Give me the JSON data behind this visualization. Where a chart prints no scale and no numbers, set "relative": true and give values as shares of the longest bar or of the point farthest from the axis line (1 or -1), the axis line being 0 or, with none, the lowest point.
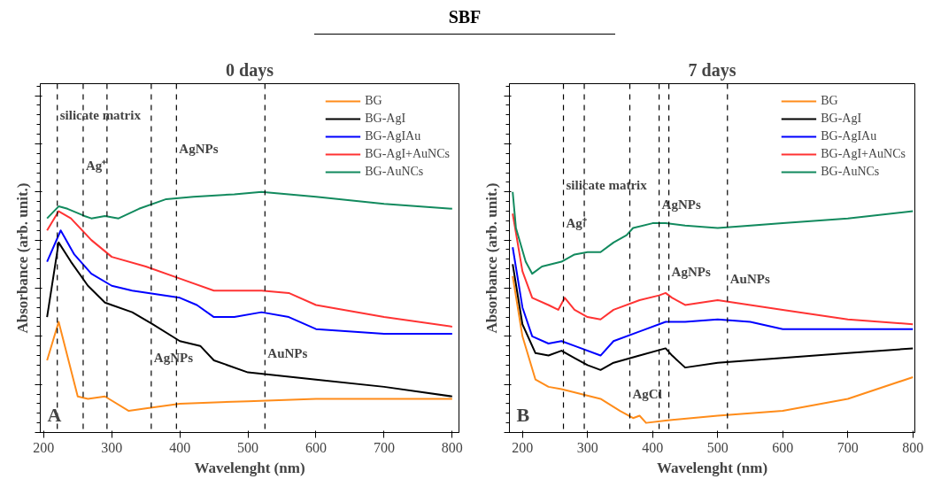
{
  "chart_data": [
    {
      "type": "line",
      "title": "0 days",
      "subtitle": "SBF",
      "xlabel": "Wavelenght (nm)",
      "ylabel": "Absorbance (arb. unit.)",
      "relative": true,
      "xlim": [
        195,
        810
      ],
      "xticks": [
        200,
        300,
        400,
        500,
        600,
        700,
        800
      ],
      "tick_labels": "x",
      "grid": false,
      "legend": "top right",
      "line_style": "solid",
      "marker": "none",
      "series": [
        {
          "name": "BG",
          "color": "#ff8c1a",
          "x": [
            205,
            222,
            250,
            265,
            290,
            325,
            350,
            400,
            500,
            600,
            700,
            800
          ],
          "values": [
            0.3,
            0.46,
            0.15,
            0.14,
            0.15,
            0.09,
            0.1,
            0.12,
            0.13,
            0.14,
            0.14,
            0.14
          ]
        },
        {
          "name": "BG-AgI",
          "color": "#000000",
          "x": [
            205,
            222,
            240,
            265,
            290,
            300,
            330,
            360,
            400,
            430,
            450,
            500,
            600,
            700,
            800
          ],
          "values": [
            0.48,
            0.79,
            0.71,
            0.61,
            0.54,
            0.53,
            0.5,
            0.45,
            0.38,
            0.36,
            0.3,
            0.25,
            0.22,
            0.19,
            0.15
          ]
        },
        {
          "name": "BG-AgIAu",
          "color": "#0000ff",
          "x": [
            205,
            225,
            245,
            270,
            300,
            330,
            400,
            425,
            450,
            480,
            520,
            560,
            600,
            700,
            800
          ],
          "values": [
            0.71,
            0.84,
            0.74,
            0.66,
            0.61,
            0.59,
            0.56,
            0.53,
            0.48,
            0.48,
            0.5,
            0.48,
            0.43,
            0.41,
            0.41
          ]
        },
        {
          "name": "BG-AgI+AuNCs",
          "color": "#ff3333",
          "x": [
            205,
            222,
            240,
            270,
            300,
            350,
            400,
            450,
            520,
            560,
            600,
            700,
            800
          ],
          "values": [
            0.84,
            0.92,
            0.89,
            0.8,
            0.73,
            0.69,
            0.64,
            0.59,
            0.59,
            0.58,
            0.53,
            0.48,
            0.44
          ]
        },
        {
          "name": "BG-AuNCs",
          "color": "#128a5e",
          "x": [
            205,
            222,
            235,
            260,
            270,
            290,
            310,
            340,
            380,
            420,
            480,
            520,
            600,
            700,
            800
          ],
          "values": [
            0.89,
            0.94,
            0.93,
            0.9,
            0.89,
            0.9,
            0.89,
            0.93,
            0.97,
            0.98,
            0.99,
            1.0,
            0.98,
            0.95,
            0.93
          ]
        }
      ],
      "ref_lines": [
        {
          "axis": "x",
          "value": 220,
          "line_style": "dashed",
          "color": "#000000"
        },
        {
          "axis": "x",
          "value": 258,
          "line_style": "dashed",
          "color": "#000000"
        },
        {
          "axis": "x",
          "value": 293,
          "line_style": "dashed",
          "color": "#000000"
        },
        {
          "axis": "x",
          "value": 358,
          "line_style": "dashed",
          "color": "#000000"
        },
        {
          "axis": "x",
          "value": 395,
          "line_style": "dashed",
          "color": "#000000"
        },
        {
          "axis": "x",
          "value": 525,
          "line_style": "dashed",
          "color": "#000000"
        }
      ],
      "annotations": [
        "A",
        {
          "text": "silicate matrix",
          "x": 220,
          "y": 1.29
        },
        {
          "text": "Ag⁺",
          "x": 258,
          "y": 1.08
        },
        {
          "text": "AgNPs",
          "x": 395,
          "y": 1.15
        },
        {
          "text": "AgNPs",
          "x": 358,
          "y": 0.28
        },
        {
          "text": "AuNPs",
          "x": 525,
          "y": 0.3
        }
      ]
    },
    {
      "type": "line",
      "title": "7 days",
      "xlabel": "Wavelenght (nm)",
      "ylabel": "Absorbance (arb. unit.)",
      "relative": true,
      "xlim": [
        180,
        803
      ],
      "xticks": [
        200,
        300,
        400,
        500,
        600,
        700,
        800
      ],
      "tick_labels": "x",
      "grid": false,
      "legend": "top right",
      "line_style": "solid",
      "marker": "none",
      "series": [
        {
          "name": "BG",
          "color": "#ff8c1a",
          "x": [
            185,
            200,
            220,
            240,
            260,
            290,
            320,
            350,
            370,
            380,
            390,
            420,
            500,
            600,
            700,
            800
          ],
          "values": [
            0.65,
            0.4,
            0.22,
            0.19,
            0.18,
            0.16,
            0.14,
            0.09,
            0.06,
            0.07,
            0.04,
            0.05,
            0.07,
            0.09,
            0.14,
            0.23
          ]
        },
        {
          "name": "BG-AgI",
          "color": "#000000",
          "x": [
            185,
            200,
            220,
            240,
            260,
            280,
            300,
            320,
            340,
            380,
            420,
            430,
            450,
            500,
            600,
            700,
            800
          ],
          "values": [
            0.7,
            0.45,
            0.33,
            0.32,
            0.34,
            0.31,
            0.28,
            0.26,
            0.29,
            0.32,
            0.35,
            0.32,
            0.27,
            0.29,
            0.31,
            0.33,
            0.35
          ]
        },
        {
          "name": "BG-AgIAu",
          "color": "#0000ff",
          "x": [
            185,
            200,
            215,
            240,
            260,
            280,
            320,
            340,
            380,
            420,
            450,
            500,
            550,
            600,
            700,
            800
          ],
          "values": [
            0.77,
            0.52,
            0.4,
            0.37,
            0.38,
            0.36,
            0.32,
            0.38,
            0.42,
            0.46,
            0.46,
            0.47,
            0.46,
            0.43,
            0.43,
            0.43
          ]
        },
        {
          "name": "BG-AgI+AuNCs",
          "color": "#ff3333",
          "x": [
            185,
            200,
            215,
            240,
            255,
            265,
            280,
            300,
            320,
            340,
            380,
            410,
            420,
            430,
            450,
            500,
            550,
            600,
            700,
            800
          ],
          "values": [
            0.91,
            0.67,
            0.56,
            0.53,
            0.51,
            0.56,
            0.51,
            0.48,
            0.47,
            0.51,
            0.55,
            0.57,
            0.58,
            0.56,
            0.53,
            0.55,
            0.53,
            0.51,
            0.47,
            0.45
          ]
        },
        {
          "name": "BG-AuNCs",
          "color": "#128a5e",
          "x": [
            185,
            190,
            205,
            215,
            230,
            260,
            280,
            300,
            320,
            340,
            360,
            370,
            400,
            420,
            450,
            500,
            600,
            700,
            800
          ],
          "values": [
            1.0,
            0.85,
            0.71,
            0.66,
            0.69,
            0.71,
            0.74,
            0.75,
            0.75,
            0.79,
            0.82,
            0.85,
            0.87,
            0.87,
            0.86,
            0.85,
            0.87,
            0.89,
            0.92
          ]
        }
      ],
      "ref_lines": [
        {
          "axis": "x",
          "value": 263,
          "line_style": "dashed",
          "color": "#000000"
        },
        {
          "axis": "x",
          "value": 295,
          "line_style": "dashed",
          "color": "#000000"
        },
        {
          "axis": "x",
          "value": 365,
          "line_style": "dashed",
          "color": "#000000"
        },
        {
          "axis": "x",
          "value": 410,
          "line_style": "dashed",
          "color": "#000000"
        },
        {
          "axis": "x",
          "value": 425,
          "line_style": "dashed",
          "color": "#000000"
        },
        {
          "axis": "x",
          "value": 515,
          "line_style": "dashed",
          "color": "#000000"
        }
      ],
      "annotations": [
        "B",
        {
          "text": "silicate matrix",
          "x": 263,
          "y": 1.0
        },
        {
          "text": "Ag⁺",
          "x": 263,
          "y": 0.84
        },
        {
          "text": "AgNPs",
          "x": 410,
          "y": 0.92
        },
        {
          "text": "AgNPs",
          "x": 425,
          "y": 0.64
        },
        {
          "text": "AuNPs",
          "x": 515,
          "y": 0.61
        },
        {
          "text": "AgCl",
          "x": 365,
          "y": 0.13
        }
      ]
    }
  ]
}
